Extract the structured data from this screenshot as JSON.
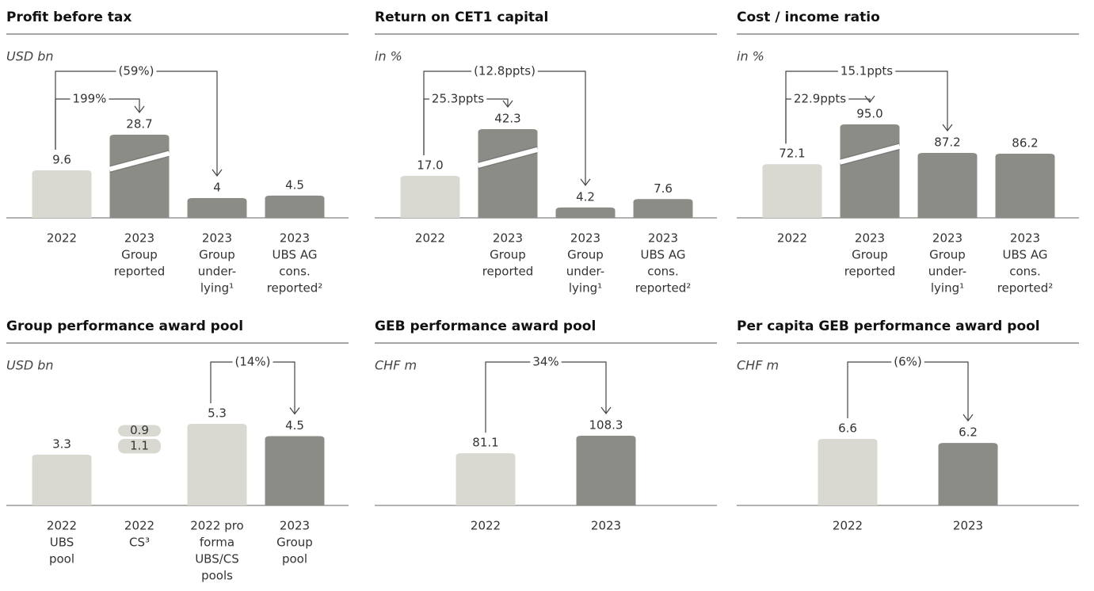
{
  "chart_data": [
    {
      "type": "bar",
      "title": "Profit before tax",
      "subtitle": "USD bn",
      "categories": [
        [
          "2022"
        ],
        [
          "2023",
          "Group",
          "reported"
        ],
        [
          "2023",
          "Group",
          "under-",
          "lying¹"
        ],
        [
          "2023",
          "UBS AG",
          "cons.",
          "reported²"
        ]
      ],
      "values": [
        9.6,
        28.7,
        4.0,
        4.5
      ],
      "colors": [
        "#d9d9d2",
        "#8c8c87",
        "#8c8c87",
        "#8c8c87"
      ],
      "broken": [
        1
      ],
      "annotations": [
        {
          "text": "199%",
          "from": 0,
          "to": 1
        },
        {
          "text": "(59%)",
          "from": 0,
          "to": 2
        }
      ]
    },
    {
      "type": "bar",
      "title": "Return on CET1 capital",
      "subtitle": "in %",
      "categories": [
        [
          "2022"
        ],
        [
          "2023",
          "Group",
          "reported"
        ],
        [
          "2023",
          "Group",
          "under-",
          "lying¹"
        ],
        [
          "2023",
          "UBS AG",
          "cons.",
          "reported²"
        ]
      ],
      "values": [
        17.0,
        42.3,
        4.2,
        7.6
      ],
      "value_labels": [
        "17.0",
        "42.3",
        "4.2",
        "7.6"
      ],
      "colors": [
        "#d9d9d2",
        "#8c8c87",
        "#8c8c87",
        "#8c8c87"
      ],
      "broken": [
        1
      ],
      "annotations": [
        {
          "text": "25.3ppts",
          "from": 0,
          "to": 1
        },
        {
          "text": "(12.8ppts)",
          "from": 0,
          "to": 2
        }
      ]
    },
    {
      "type": "bar",
      "title": "Cost / income ratio",
      "subtitle": "in %",
      "categories": [
        [
          "2022"
        ],
        [
          "2023",
          "Group",
          "reported"
        ],
        [
          "2023",
          "Group",
          "under-",
          "lying¹"
        ],
        [
          "2023",
          "UBS AG",
          "cons.",
          "reported²"
        ]
      ],
      "values": [
        72.1,
        95.0,
        87.2,
        86.2
      ],
      "value_labels": [
        "72.1",
        "95.0",
        "87.2",
        "86.2"
      ],
      "colors": [
        "#d9d9d2",
        "#8c8c87",
        "#8c8c87",
        "#8c8c87"
      ],
      "broken": [
        1
      ],
      "annotations": [
        {
          "text": "22.9ppts",
          "from": 0,
          "to": 1
        },
        {
          "text": "15.1ppts",
          "from": 0,
          "to": 2
        }
      ]
    },
    {
      "type": "bar",
      "title": "Group performance award pool",
      "subtitle": "USD bn",
      "categories": [
        [
          "2022",
          "UBS",
          "pool"
        ],
        [
          "2022",
          "CS³"
        ],
        [
          "2022 pro",
          "forma",
          "UBS/CS",
          "pools"
        ],
        [
          "2023",
          "Group",
          "pool"
        ]
      ],
      "values": [
        3.3,
        [
          1.1,
          0.9
        ],
        5.3,
        4.5
      ],
      "colors": [
        "#d9d9d2",
        "#d9d9d2",
        "#d9d9d2",
        "#8c8c87"
      ],
      "broken": [],
      "annotations": [
        {
          "text": "(14%)",
          "from": 2,
          "to": 3
        }
      ]
    },
    {
      "type": "bar",
      "title": "GEB performance award pool",
      "subtitle": "CHF m",
      "categories": [
        [
          "2022"
        ],
        [
          "2023"
        ]
      ],
      "values": [
        81.1,
        108.3
      ],
      "colors": [
        "#d9d9d2",
        "#8c8c87"
      ],
      "broken": [],
      "annotations": [
        {
          "text": "34%",
          "from": 0,
          "to": 1
        }
      ]
    },
    {
      "type": "bar",
      "title": "Per capita GEB performance award pool",
      "subtitle": "CHF m",
      "categories": [
        [
          "2022"
        ],
        [
          "2023"
        ]
      ],
      "values": [
        6.6,
        6.2
      ],
      "colors": [
        "#d9d9d2",
        "#8c8c87"
      ],
      "broken": [],
      "annotations": [
        {
          "text": "(6%)",
          "from": 0,
          "to": 1
        }
      ]
    }
  ]
}
